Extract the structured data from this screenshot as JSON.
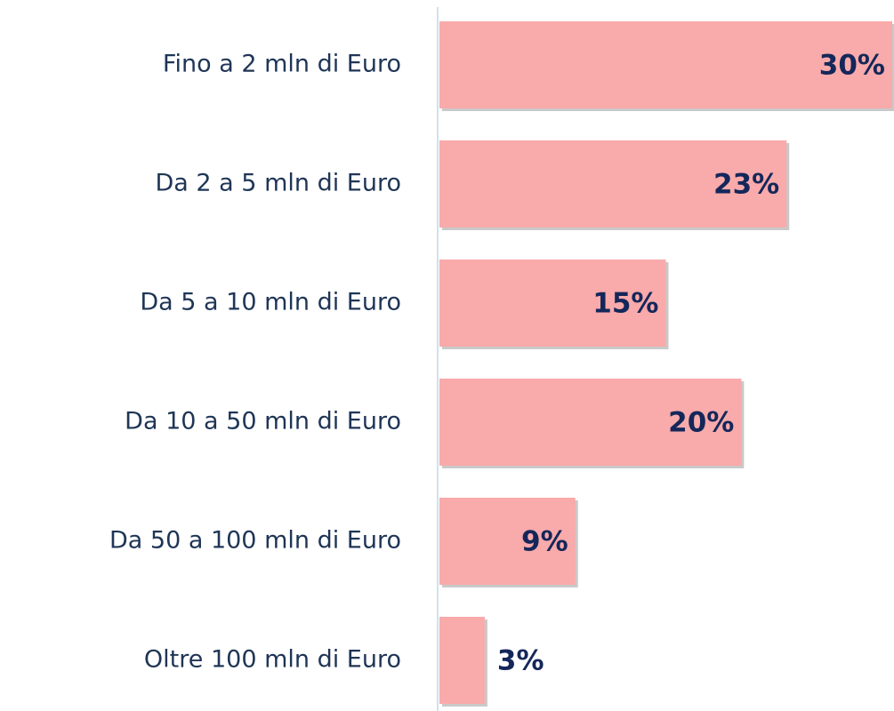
{
  "chart_data": {
    "type": "bar",
    "orientation": "horizontal",
    "categories": [
      "Fino a 2 mln di Euro",
      "Da 2 a 5 mln di Euro",
      "Da 5 a 10 mln di Euro",
      "Da 10 a 50 mln di Euro",
      "Da 50 a 100 mln di Euro",
      "Oltre 100 mln di Euro"
    ],
    "values": [
      30,
      23,
      15,
      20,
      9,
      3
    ],
    "value_labels": [
      "30%",
      "23%",
      "15%",
      "20%",
      "9%",
      "3%"
    ],
    "color": "#f9aaaa"
  }
}
